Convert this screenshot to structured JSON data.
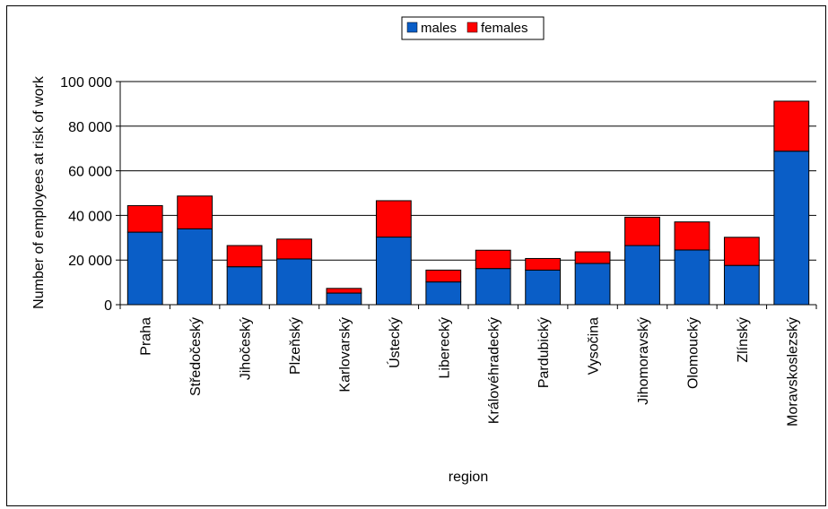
{
  "chart_data": {
    "type": "bar",
    "stacked": true,
    "title": "",
    "xlabel": "region",
    "ylabel": "Number of employees at risk of work",
    "ylim": [
      0,
      100000
    ],
    "y_ticks": [
      0,
      20000,
      40000,
      60000,
      80000,
      100000
    ],
    "y_tick_labels": [
      "0",
      "20 000",
      "40 000",
      "60 000",
      "80 000",
      "100 000"
    ],
    "grid": true,
    "legend_position": "top-center",
    "categories": [
      "Praha",
      "Středočeský",
      "Jihočeský",
      "Plzeňský",
      "Karlovarský",
      "Ústecký",
      "Liberecký",
      "Královéhradecký",
      "Pardubický",
      "Vysočina",
      "Jihomoravský",
      "Olomoucký",
      "Zlínský",
      "Moravskoslezský"
    ],
    "series": [
      {
        "name": "males",
        "color": "#0a5ec7",
        "values": [
          32500,
          34000,
          17000,
          20500,
          5200,
          30300,
          10200,
          16200,
          15500,
          18500,
          26500,
          24500,
          17600,
          68800
        ]
      },
      {
        "name": "females",
        "color": "#ff0000",
        "values": [
          11900,
          14700,
          9500,
          8900,
          2100,
          16300,
          5300,
          8200,
          5200,
          5200,
          12700,
          12600,
          12600,
          22400
        ]
      }
    ]
  }
}
